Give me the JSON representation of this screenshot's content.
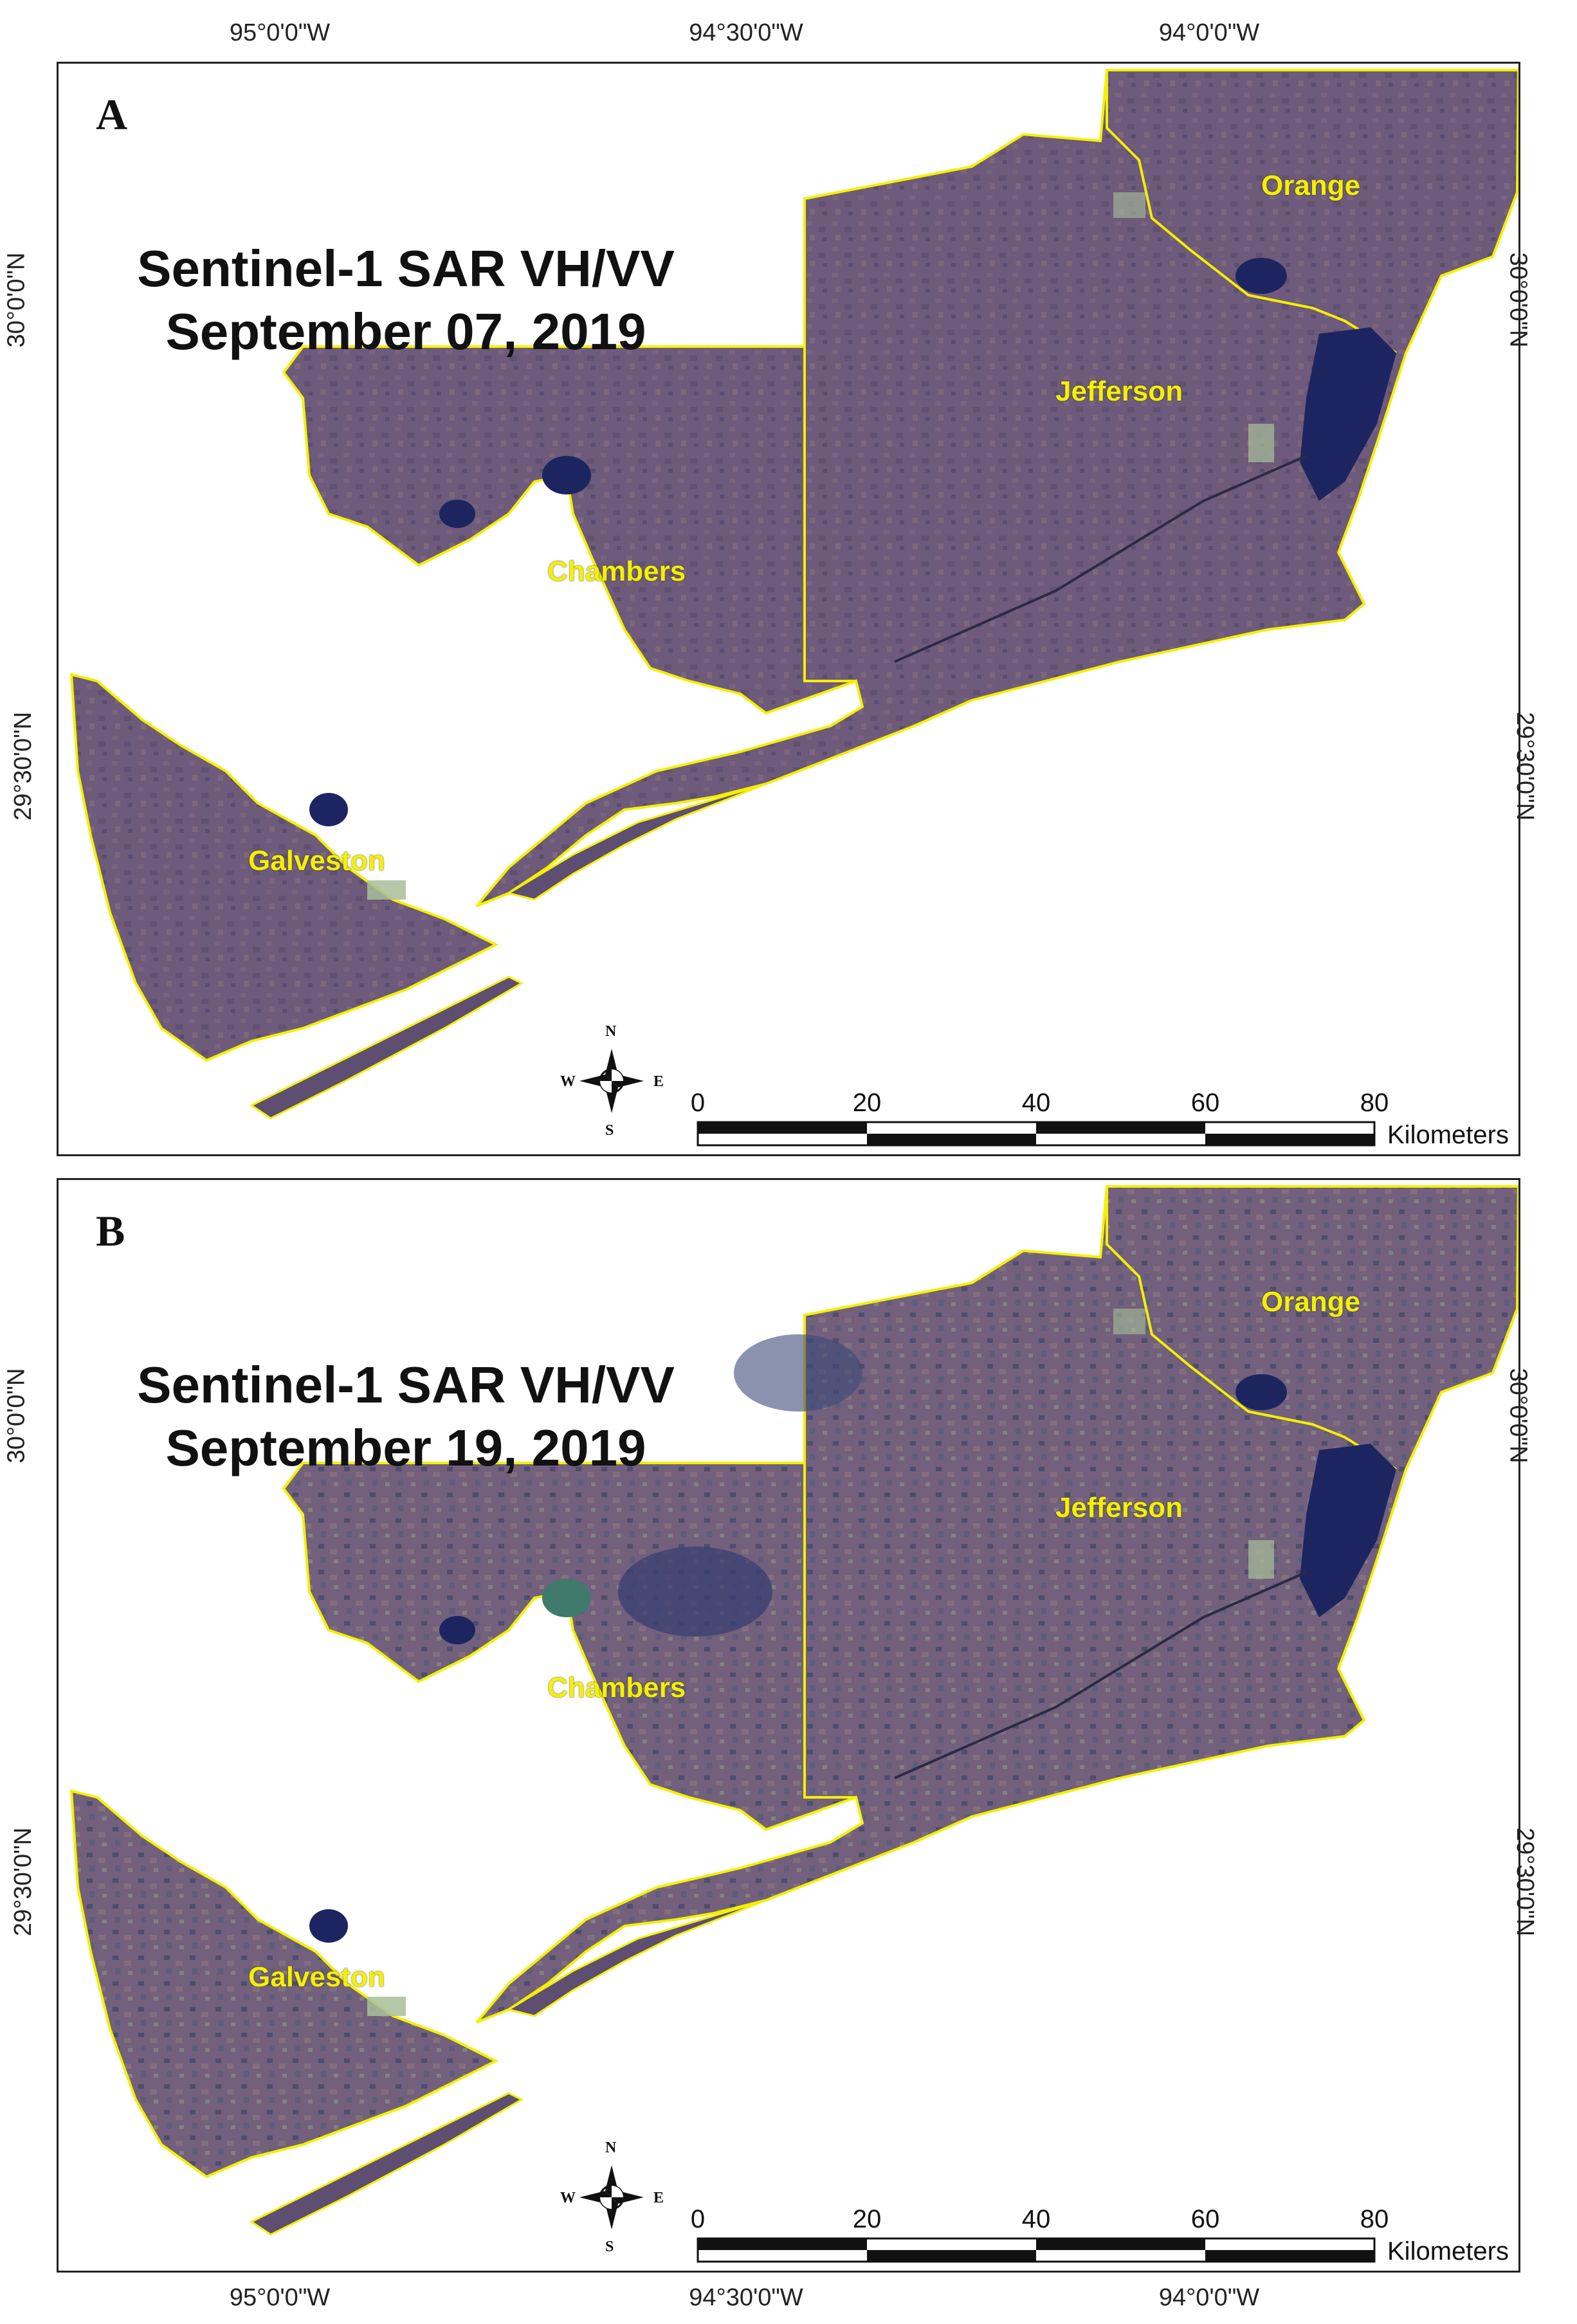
{
  "coordinates": {
    "top": [
      "95°0'0\"W",
      "94°30'0\"W",
      "94°0'0\"W"
    ],
    "bottom": [
      "95°0'0\"W",
      "94°30'0\"W",
      "94°0'0\"W"
    ],
    "latitude": [
      "30°0'0\"N",
      "29°30'0\"N"
    ]
  },
  "panels": [
    {
      "label": "A",
      "title_line1": "Sentinel-1 SAR VH/VV",
      "title_line2": "September 07, 2019"
    },
    {
      "label": "B",
      "title_line1": "Sentinel-1 SAR VH/VV",
      "title_line2": "September 19, 2019"
    }
  ],
  "counties": {
    "orange": "Orange",
    "jefferson": "Jefferson",
    "chambers": "Chambers",
    "galveston": "Galveston"
  },
  "scale_bar": {
    "ticks": [
      "0",
      "20",
      "40",
      "60",
      "80"
    ],
    "unit": "Kilometers"
  },
  "compass": {
    "n": "N",
    "s": "S",
    "e": "E",
    "w": "W"
  },
  "colors": {
    "land": "#6e5a7a",
    "water_dark": "#1d2560",
    "boundary": "#f4f000",
    "urban": "#a8c09a"
  }
}
